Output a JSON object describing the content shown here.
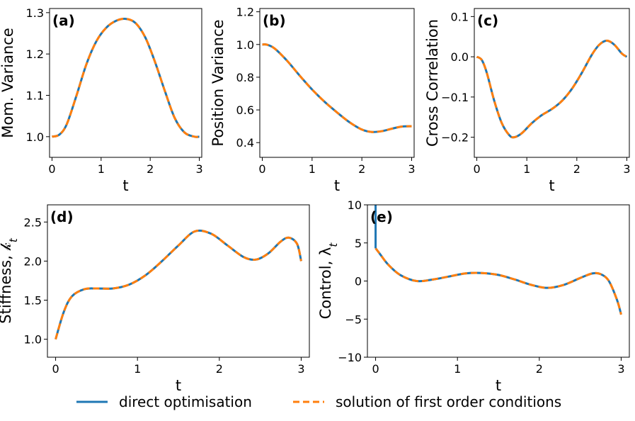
{
  "legend": [
    {
      "label": "direct optimisation",
      "color": "#1f77b4",
      "style": "solid"
    },
    {
      "label": "solution of first order conditions",
      "color": "#ff7f0e",
      "style": "dashed"
    }
  ],
  "chart_data": [
    {
      "type": "line",
      "panel": "(a)",
      "xlabel": "t",
      "ylabel": "Mom. Variance",
      "xlim": [
        -0.05,
        3.05
      ],
      "ylim": [
        0.95,
        1.31
      ],
      "xticks": [
        0,
        1,
        2,
        3
      ],
      "yticks": [
        1.0,
        1.1,
        1.2,
        1.3
      ],
      "series": [
        {
          "x": [
            0,
            0.15,
            0.3,
            0.5,
            0.7,
            0.9,
            1.1,
            1.3,
            1.5,
            1.7,
            1.9,
            2.1,
            2.3,
            2.5,
            2.7,
            2.9,
            3.0
          ],
          "y": [
            1.0,
            1.005,
            1.03,
            1.1,
            1.175,
            1.23,
            1.263,
            1.28,
            1.285,
            1.275,
            1.24,
            1.18,
            1.11,
            1.045,
            1.01,
            1.0,
            1.0
          ]
        }
      ]
    },
    {
      "type": "line",
      "panel": "(b)",
      "xlabel": "t",
      "ylabel": "Position Variance",
      "xlim": [
        -0.05,
        3.05
      ],
      "ylim": [
        0.31,
        1.22
      ],
      "xticks": [
        0,
        1,
        2,
        3
      ],
      "yticks": [
        0.4,
        0.6,
        0.8,
        1.0,
        1.2
      ],
      "series": [
        {
          "x": [
            0,
            0.1,
            0.25,
            0.5,
            0.75,
            1.0,
            1.25,
            1.5,
            1.75,
            2.0,
            2.2,
            2.4,
            2.6,
            2.8,
            3.0
          ],
          "y": [
            1.0,
            0.998,
            0.975,
            0.9,
            0.81,
            0.725,
            0.65,
            0.585,
            0.525,
            0.48,
            0.465,
            0.47,
            0.485,
            0.498,
            0.5
          ]
        }
      ]
    },
    {
      "type": "line",
      "panel": "(c)",
      "xlabel": "t",
      "ylabel": "Cross Correlation",
      "xlim": [
        -0.05,
        3.05
      ],
      "ylim": [
        -0.25,
        0.12
      ],
      "xticks": [
        0,
        1,
        2,
        3
      ],
      "yticks": [
        -0.2,
        -0.1,
        0.0,
        0.1
      ],
      "series": [
        {
          "x": [
            0,
            0.1,
            0.2,
            0.35,
            0.5,
            0.65,
            0.75,
            0.9,
            1.1,
            1.3,
            1.5,
            1.7,
            1.9,
            2.1,
            2.3,
            2.45,
            2.6,
            2.75,
            2.9,
            3.0
          ],
          "y": [
            0.0,
            -0.008,
            -0.04,
            -0.11,
            -0.165,
            -0.195,
            -0.2,
            -0.19,
            -0.165,
            -0.145,
            -0.13,
            -0.11,
            -0.08,
            -0.04,
            0.005,
            0.03,
            0.04,
            0.03,
            0.008,
            0.0
          ]
        }
      ]
    },
    {
      "type": "line",
      "panel": "(d)",
      "xlabel": "t",
      "ylabel": "Stiffness, 𝓀",
      "ylabel_sub": "t",
      "xlim": [
        -0.1,
        3.1
      ],
      "ylim": [
        0.77,
        2.72
      ],
      "xticks": [
        0,
        1,
        2,
        3
      ],
      "yticks": [
        1.0,
        1.5,
        2.0,
        2.5
      ],
      "series": [
        {
          "x": [
            0,
            0.1,
            0.2,
            0.35,
            0.5,
            0.7,
            0.9,
            1.1,
            1.3,
            1.5,
            1.7,
            1.9,
            2.1,
            2.3,
            2.45,
            2.6,
            2.75,
            2.85,
            2.95,
            3.0
          ],
          "y": [
            1.0,
            1.35,
            1.55,
            1.64,
            1.65,
            1.65,
            1.7,
            1.82,
            2.0,
            2.2,
            2.38,
            2.35,
            2.2,
            2.05,
            2.02,
            2.1,
            2.25,
            2.3,
            2.22,
            2.0
          ]
        }
      ]
    },
    {
      "type": "line",
      "panel": "(e)",
      "xlabel": "t",
      "ylabel": "Control, λ",
      "ylabel_sub": "t",
      "xlim": [
        -0.1,
        3.1
      ],
      "ylim": [
        -10,
        10
      ],
      "xticks": [
        0,
        1,
        2,
        3
      ],
      "yticks": [
        -10,
        -5,
        0,
        5,
        10
      ],
      "series": [
        {
          "x": [
            0,
            0.05,
            0.15,
            0.3,
            0.5,
            0.7,
            0.9,
            1.1,
            1.3,
            1.5,
            1.7,
            1.9,
            2.1,
            2.3,
            2.5,
            2.65,
            2.75,
            2.85,
            2.95,
            3.0
          ],
          "y": [
            4.3,
            3.6,
            2.2,
            0.8,
            0.0,
            0.2,
            0.6,
            1.0,
            1.05,
            0.8,
            0.2,
            -0.5,
            -0.9,
            -0.5,
            0.4,
            1.0,
            0.9,
            0.0,
            -2.5,
            -4.4
          ]
        }
      ]
    }
  ]
}
